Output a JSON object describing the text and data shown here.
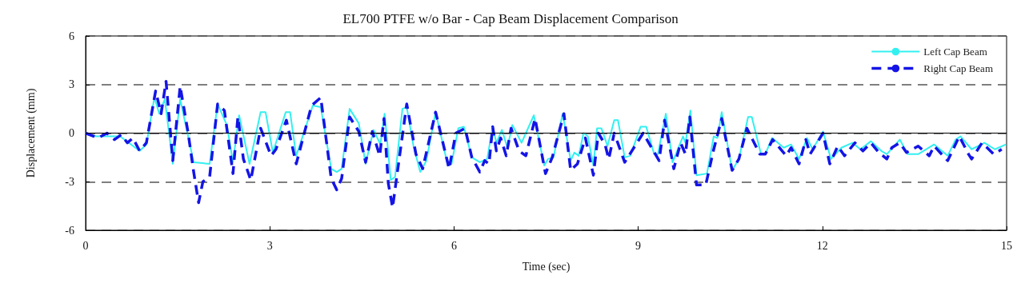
{
  "chart_data": {
    "type": "line",
    "title": "EL700 PTFE w/o Bar - Cap Beam Displacement Comparison",
    "xlabel": "Time (sec)",
    "ylabel": "Displacement (mm)",
    "xlim": [
      0,
      15
    ],
    "xticks": [
      0,
      3,
      6,
      9,
      12,
      15
    ],
    "ylim": [
      -6,
      6
    ],
    "yticks": [
      -6,
      -3,
      0,
      3,
      6
    ],
    "grid": "y",
    "legend": "top right",
    "marker": "none",
    "ref_lines": [
      {
        "axis": "y",
        "value": 0,
        "color": "#000000",
        "line_style": "solid"
      }
    ],
    "series": [
      {
        "name": "Left Cap Beam",
        "color": "#33f0f0",
        "line_style": "solid",
        "x": [
          0,
          0.17,
          0.56,
          0.88,
          0.99,
          1.12,
          1.2,
          1.29,
          1.42,
          1.54,
          1.76,
          2.02,
          2.15,
          2.3,
          2.4,
          2.5,
          2.67,
          2.85,
          2.93,
          3.05,
          3.26,
          3.33,
          3.43,
          3.7,
          3.83,
          4.0,
          4.09,
          4.17,
          4.3,
          4.45,
          4.56,
          4.69,
          4.8,
          4.87,
          4.97,
          5.04,
          5.16,
          5.23,
          5.34,
          5.45,
          5.55,
          5.7,
          5.9,
          5.96,
          6.07,
          6.16,
          6.29,
          6.42,
          6.54,
          6.63,
          6.69,
          6.78,
          6.87,
          6.95,
          7.1,
          7.3,
          7.47,
          7.53,
          7.62,
          7.77,
          7.9,
          7.96,
          8.03,
          8.11,
          8.18,
          8.27,
          8.33,
          8.4,
          8.5,
          8.61,
          8.67,
          8.78,
          8.87,
          9.04,
          9.13,
          9.26,
          9.32,
          9.45,
          9.56,
          9.73,
          9.77,
          9.85,
          9.95,
          10.12,
          10.23,
          10.29,
          10.36,
          10.53,
          10.64,
          10.79,
          10.85,
          11.0,
          11.07,
          11.18,
          11.37,
          11.49,
          11.62,
          11.75,
          11.84,
          12.01,
          12.14,
          12.31,
          12.49,
          12.62,
          12.79,
          12.96,
          13.05,
          13.26,
          13.39,
          13.56,
          13.82,
          14.04,
          14.17,
          14.25,
          14.43,
          14.64,
          14.81,
          14.99
        ],
        "values": [
          0,
          -0.2,
          -0.2,
          -1.1,
          -0.7,
          2.2,
          1.2,
          2.1,
          -1.9,
          2.1,
          -1.8,
          -1.9,
          1.8,
          0.5,
          -1.8,
          1.1,
          -1.9,
          1.3,
          1.3,
          -1.2,
          1.3,
          1.3,
          -1.4,
          1.7,
          1.6,
          -2.2,
          -2.4,
          -2.2,
          1.5,
          0.6,
          -1.9,
          0.2,
          -0.7,
          1.2,
          -2.9,
          -2.7,
          1.5,
          1.6,
          -0.8,
          -2.4,
          -1.7,
          1.3,
          -2.0,
          -1.9,
          0.3,
          0.4,
          -1.5,
          -1.8,
          -1.6,
          0.4,
          -0.6,
          0.2,
          -0.9,
          0.5,
          -0.6,
          1.1,
          -2.0,
          -1.6,
          -1.5,
          1.2,
          -1.7,
          -1.2,
          -1.4,
          0,
          -0.2,
          -2.0,
          0.3,
          0.3,
          -0.8,
          0.8,
          0.8,
          -1.5,
          -1.4,
          0.4,
          0.4,
          -1.3,
          -1.3,
          1.2,
          -1.8,
          -0.2,
          -0.6,
          1.4,
          -2.6,
          -2.5,
          -0.2,
          -0.3,
          1.3,
          -2.3,
          -1.6,
          1.0,
          1.0,
          -1.3,
          -1.3,
          -0.3,
          -0.9,
          -0.7,
          -1.6,
          -0.3,
          -1.0,
          0.1,
          -1.6,
          -0.9,
          -0.6,
          -1.0,
          -0.5,
          -1.1,
          -1.3,
          -0.4,
          -1.3,
          -1.3,
          -0.7,
          -1.4,
          -0.4,
          -0.2,
          -1.0,
          -0.6,
          -1.0,
          -0.7
        ]
      },
      {
        "name": "Right Cap Beam",
        "color": "#1414e6",
        "line_style": "dashed",
        "x": [
          0,
          0.2,
          0.35,
          0.47,
          0.58,
          0.68,
          0.77,
          0.88,
          0.99,
          1.14,
          1.23,
          1.31,
          1.42,
          1.54,
          1.67,
          1.76,
          1.84,
          1.91,
          2.02,
          2.15,
          2.26,
          2.4,
          2.48,
          2.57,
          2.69,
          2.85,
          3.02,
          3.1,
          3.27,
          3.43,
          3.68,
          3.83,
          4.0,
          4.09,
          4.17,
          4.3,
          4.45,
          4.56,
          4.67,
          4.79,
          4.86,
          4.93,
          5.0,
          5.06,
          5.23,
          5.38,
          5.49,
          5.7,
          5.92,
          6.03,
          6.18,
          6.29,
          6.42,
          6.5,
          6.57,
          6.63,
          6.69,
          6.76,
          6.85,
          6.93,
          7.06,
          7.17,
          7.32,
          7.49,
          7.6,
          7.79,
          7.9,
          8.01,
          8.14,
          8.27,
          8.35,
          8.46,
          8.52,
          8.61,
          8.78,
          8.83,
          9.08,
          9.34,
          9.43,
          9.58,
          9.69,
          9.77,
          9.84,
          9.95,
          10.1,
          10.23,
          10.36,
          10.53,
          10.64,
          10.77,
          10.98,
          11.07,
          11.19,
          11.41,
          11.49,
          11.62,
          11.73,
          11.8,
          12.01,
          12.12,
          12.25,
          12.36,
          12.53,
          12.66,
          12.79,
          12.92,
          13.05,
          13.13,
          13.26,
          13.37,
          13.56,
          13.74,
          13.82,
          14.04,
          14.23,
          14.38,
          14.43,
          14.6,
          14.79,
          14.92
        ],
        "values": [
          0,
          -0.3,
          0,
          -0.4,
          -0.1,
          -0.6,
          -0.3,
          -1.1,
          -0.6,
          2.6,
          1.2,
          3.2,
          -1.7,
          2.9,
          0,
          -2.4,
          -4.3,
          -3.0,
          -2.7,
          1.8,
          1.4,
          -2.5,
          1.0,
          -1.6,
          -2.9,
          0.3,
          -1.4,
          -1.0,
          0.8,
          -1.9,
          1.7,
          2.2,
          -2.8,
          -3.5,
          -2.8,
          1.0,
          0.1,
          -1.8,
          0.1,
          -1.4,
          0.9,
          -3.1,
          -4.6,
          -2.9,
          1.8,
          -1.3,
          -2.2,
          1.3,
          -2.2,
          0,
          0.3,
          -1.5,
          -2.4,
          -1.7,
          -1.9,
          0.4,
          -1.1,
          -0.3,
          -1.4,
          0.3,
          -1.1,
          -1.4,
          0.9,
          -2.5,
          -1.5,
          1.2,
          -2.3,
          -1.9,
          -0.3,
          -2.6,
          0,
          -0.7,
          -1.6,
          0,
          -1.8,
          -1.5,
          0,
          -1.7,
          0.8,
          -2.2,
          -0.6,
          -1.3,
          1.0,
          -3.2,
          -3.2,
          -1.0,
          0.9,
          -2.3,
          -1.6,
          0.3,
          -1.3,
          -1.3,
          -0.4,
          -1.4,
          -0.9,
          -1.9,
          -0.4,
          -1.3,
          0,
          -1.9,
          -0.8,
          -1.4,
          -0.6,
          -1.1,
          -0.6,
          -1.2,
          -1.6,
          -0.9,
          -0.6,
          -1.2,
          -0.8,
          -1.4,
          -0.8,
          -1.7,
          -0.2,
          -1.3,
          -1.6,
          -0.6,
          -1.3,
          -1.0
        ]
      }
    ]
  }
}
